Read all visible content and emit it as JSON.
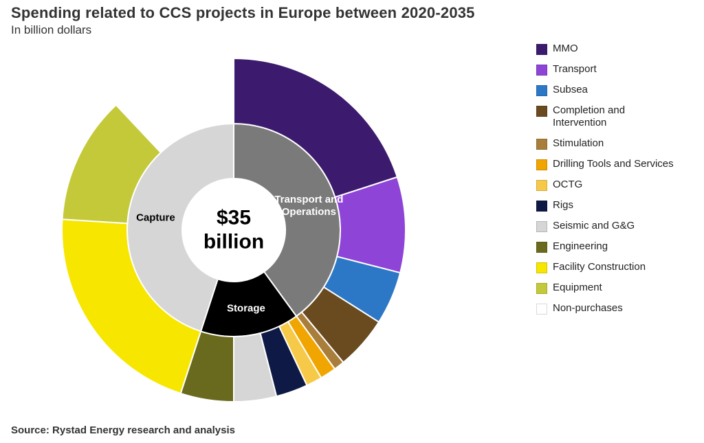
{
  "title": "Spending related to CCS projects in Europe between 2020-2035",
  "subtitle": "In billion dollars",
  "center_value": "$35",
  "center_unit": "billion",
  "source": "Source: Rystad Energy research and analysis",
  "chart": {
    "type": "nested-donut",
    "background_color": "#ffffff",
    "ring_stroke": "#ffffff",
    "ring_stroke_width": 2,
    "label_font_size": 15,
    "label_color": "#ffffff",
    "center_font_size": 30,
    "inner_ring": {
      "inner_radius_pct": 30,
      "outer_radius_pct": 62,
      "slices": [
        {
          "id": "transport_ops",
          "label": "Transport and\nOperations",
          "value": 40,
          "color": "#7a7a7a",
          "label_color": "#ffffff"
        },
        {
          "id": "storage",
          "label": "Storage",
          "value": 15,
          "color": "#000000",
          "label_color": "#ffffff"
        },
        {
          "id": "capture",
          "label": "Capture",
          "value": 45,
          "color": "#d6d6d6",
          "label_color": "#000000"
        }
      ]
    },
    "outer_ring": {
      "inner_radius_pct": 62,
      "outer_radius_pct": 100,
      "slices": [
        {
          "id": "mmo",
          "label": "MMO",
          "value": 20.0,
          "color": "#3c1b6e"
        },
        {
          "id": "transport",
          "label": "Transport",
          "value": 9.0,
          "color": "#8e44d6"
        },
        {
          "id": "subsea",
          "label": "Subsea",
          "value": 5.0,
          "color": "#2d78c6"
        },
        {
          "id": "completion",
          "label": "Completion and Intervention",
          "value": 5.0,
          "color": "#6a4a1f"
        },
        {
          "id": "stimulation",
          "label": "Stimulation",
          "value": 1.0,
          "color": "#a87e3a"
        },
        {
          "id": "drilltools",
          "label": "Drilling Tools and Services",
          "value": 1.5,
          "color": "#f0a500"
        },
        {
          "id": "octg",
          "label": "OCTG",
          "value": 1.5,
          "color": "#f7c948"
        },
        {
          "id": "rigs",
          "label": "Rigs",
          "value": 3.0,
          "color": "#0e1a45"
        },
        {
          "id": "seismic",
          "label": "Seismic and G&G",
          "value": 4.0,
          "color": "#d6d6d6"
        },
        {
          "id": "engineering",
          "label": "Engineering",
          "value": 5.0,
          "color": "#6a6a1f"
        },
        {
          "id": "facility",
          "label": "Facility Construction",
          "value": 21.0,
          "color": "#f7e600"
        },
        {
          "id": "equipment",
          "label": "Equipment",
          "value": 12.0,
          "color": "#c4c93a"
        },
        {
          "id": "nonpurchases",
          "label": "Non-purchases",
          "value": 12.0,
          "color": "#ffffff"
        }
      ]
    },
    "legend": {
      "items": [
        {
          "label": "MMO",
          "color": "#3c1b6e"
        },
        {
          "label": "Transport",
          "color": "#8e44d6"
        },
        {
          "label": "Subsea",
          "color": "#2d78c6"
        },
        {
          "label": "Completion and Intervention",
          "color": "#6a4a1f"
        },
        {
          "label": "Stimulation",
          "color": "#a87e3a"
        },
        {
          "label": "Drilling Tools and Services",
          "color": "#f0a500"
        },
        {
          "label": "OCTG",
          "color": "#f7c948"
        },
        {
          "label": "Rigs",
          "color": "#0e1a45"
        },
        {
          "label": "Seismic and G&G",
          "color": "#d6d6d6"
        },
        {
          "label": "Engineering",
          "color": "#6a6a1f"
        },
        {
          "label": "Facility Construction",
          "color": "#f7e600"
        },
        {
          "label": "Equipment",
          "color": "#c4c93a"
        },
        {
          "label": "Non-purchases",
          "color": "#ffffff"
        }
      ]
    },
    "start_angle_deg": -90
  }
}
